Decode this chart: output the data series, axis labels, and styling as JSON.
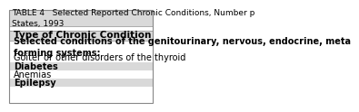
{
  "title": "TABLE 4   Selected Reported Chronic Conditions, Number p\nStates, 1993",
  "header_row": "Type of Chronic Condition",
  "section_header": "Selected conditions of the genitourinary, nervous, endocrine, meta\nforming systems:",
  "rows": [
    "Goiter or other disorders of the thyroid",
    "Diabetes",
    "Anemias",
    "Epilepsy"
  ],
  "row_bold": [
    false,
    true,
    false,
    true
  ],
  "bg_title": "#d9d9d9",
  "bg_header": "#d9d9d9",
  "bg_rows_alt": [
    "#ffffff",
    "#d9d9d9",
    "#ffffff",
    "#d9d9d9"
  ],
  "border_color": "#888888",
  "title_fontsize": 6.5,
  "header_fontsize": 7.5,
  "section_fontsize": 7.0,
  "row_fontsize": 7.0
}
